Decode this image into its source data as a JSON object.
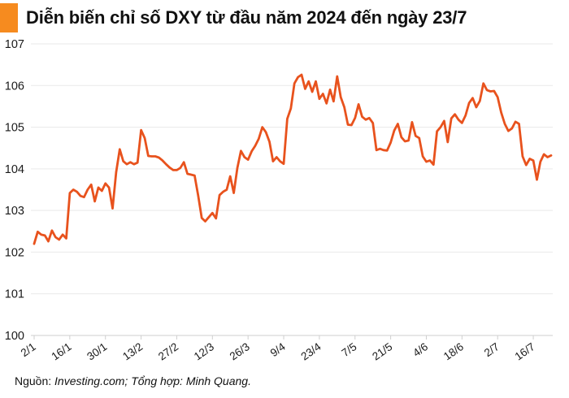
{
  "header": {
    "title": "Diễn biến chỉ số DXY từ đầu năm 2024 đến ngày 23/7",
    "accent_color": "#F68B1F"
  },
  "footer": {
    "prefix": "Nguồn: ",
    "italic_part": "Investing.com; Tổng hợp: Minh Quang."
  },
  "chart_data": {
    "type": "line",
    "title": "Diễn biến chỉ số DXY từ đầu năm 2024 đến ngày 23/7",
    "series_name": "DXY",
    "line_color": "#E8521D",
    "line_width": 2.8,
    "grid": "horizontal",
    "legend_position": "none",
    "ylim": [
      100,
      107
    ],
    "yticks": [
      100,
      101,
      102,
      103,
      104,
      105,
      106,
      107
    ],
    "xtick_every": 10,
    "xtick_labels": [
      "2/1",
      "16/1",
      "30/1",
      "13/2",
      "27/2",
      "12/3",
      "26/3",
      "9/4",
      "23/4",
      "7/5",
      "21/5",
      "4/6",
      "18/6",
      "2/7",
      "16/7"
    ],
    "x": [
      "2/1",
      "3/1",
      "4/1",
      "5/1",
      "8/1",
      "9/1",
      "10/1",
      "11/1",
      "12/1",
      "15/1",
      "16/1",
      "17/1",
      "18/1",
      "19/1",
      "22/1",
      "23/1",
      "24/1",
      "25/1",
      "26/1",
      "29/1",
      "30/1",
      "31/1",
      "1/2",
      "2/2",
      "5/2",
      "6/2",
      "7/2",
      "8/2",
      "9/2",
      "12/2",
      "13/2",
      "14/2",
      "15/2",
      "16/2",
      "19/2",
      "20/2",
      "21/2",
      "22/2",
      "23/2",
      "26/2",
      "27/2",
      "28/2",
      "29/2",
      "1/3",
      "4/3",
      "5/3",
      "6/3",
      "7/3",
      "8/3",
      "11/3",
      "12/3",
      "13/3",
      "14/3",
      "15/3",
      "18/3",
      "19/3",
      "20/3",
      "21/3",
      "22/3",
      "25/3",
      "26/3",
      "27/3",
      "28/3",
      "29/3",
      "1/4",
      "2/4",
      "3/4",
      "4/4",
      "5/4",
      "8/4",
      "9/4",
      "10/4",
      "11/4",
      "12/4",
      "15/4",
      "16/4",
      "17/4",
      "18/4",
      "19/4",
      "22/4",
      "23/4",
      "24/4",
      "25/4",
      "26/4",
      "29/4",
      "30/4",
      "1/5",
      "2/5",
      "3/5",
      "6/5",
      "7/5",
      "8/5",
      "9/5",
      "10/5",
      "13/5",
      "14/5",
      "15/5",
      "16/5",
      "17/5",
      "20/5",
      "21/5",
      "22/5",
      "23/5",
      "24/5",
      "27/5",
      "28/5",
      "29/5",
      "30/5",
      "31/5",
      "3/6",
      "4/6",
      "5/6",
      "6/6",
      "7/6",
      "10/6",
      "11/6",
      "12/6",
      "13/6",
      "14/6",
      "17/6",
      "18/6",
      "19/6",
      "20/6",
      "21/6",
      "24/6",
      "25/6",
      "26/6",
      "27/6",
      "28/6",
      "1/7",
      "2/7",
      "3/7",
      "4/7",
      "5/7",
      "8/7",
      "9/7",
      "10/7",
      "11/7",
      "12/7",
      "15/7",
      "16/7",
      "17/7",
      "18/7",
      "19/7",
      "22/7",
      "23/7"
    ],
    "series": [
      {
        "name": "DXY",
        "values": [
          102.2,
          102.49,
          102.42,
          102.4,
          102.26,
          102.52,
          102.36,
          102.3,
          102.42,
          102.33,
          103.42,
          103.5,
          103.45,
          103.35,
          103.32,
          103.5,
          103.62,
          103.22,
          103.55,
          103.47,
          103.65,
          103.55,
          103.05,
          103.92,
          104.47,
          104.18,
          104.11,
          104.16,
          104.11,
          104.15,
          104.93,
          104.74,
          104.31,
          104.3,
          104.3,
          104.27,
          104.2,
          104.11,
          104.03,
          103.97,
          103.97,
          104.02,
          104.16,
          103.88,
          103.86,
          103.84,
          103.36,
          102.82,
          102.74,
          102.84,
          102.94,
          102.81,
          103.37,
          103.45,
          103.5,
          103.82,
          103.42,
          104.02,
          104.43,
          104.28,
          104.22,
          104.42,
          104.55,
          104.72,
          105.0,
          104.88,
          104.65,
          104.18,
          104.28,
          104.18,
          104.12,
          105.2,
          105.45,
          106.05,
          106.2,
          106.26,
          105.92,
          106.1,
          105.85,
          106.1,
          105.68,
          105.8,
          105.57,
          105.9,
          105.62,
          106.22,
          105.72,
          105.48,
          105.06,
          105.05,
          105.22,
          105.55,
          105.25,
          105.18,
          105.22,
          105.1,
          104.45,
          104.48,
          104.45,
          104.44,
          104.63,
          104.92,
          105.08,
          104.76,
          104.66,
          104.68,
          105.12,
          104.79,
          104.74,
          104.3,
          104.17,
          104.2,
          104.1,
          104.9,
          105.0,
          105.15,
          104.64,
          105.21,
          105.31,
          105.18,
          105.1,
          105.28,
          105.58,
          105.7,
          105.48,
          105.63,
          106.05,
          105.89,
          105.86,
          105.87,
          105.72,
          105.35,
          105.08,
          104.91,
          104.97,
          105.13,
          105.08,
          104.3,
          104.09,
          104.24,
          104.2,
          103.74,
          104.17,
          104.35,
          104.28,
          104.32
        ]
      }
    ]
  }
}
